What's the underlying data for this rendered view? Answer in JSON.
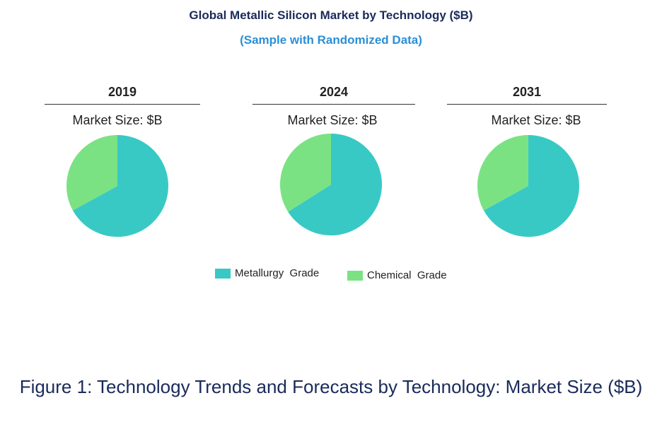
{
  "chart_data": {
    "type": "pie",
    "title": "Global Metallic Silicon Market by Technology ($B)",
    "subtitle": "(Sample with Randomized Data)",
    "legend": [
      "Metallurgy  Grade",
      "Chemical  Grade"
    ],
    "legend_placement": "bottom",
    "colors": {
      "Metallurgy  Grade": "#38c9c5",
      "Chemical  Grade": "#7be283"
    },
    "pies": [
      {
        "year": "2019",
        "label": "Market Size: $B",
        "values": [
          67,
          33
        ]
      },
      {
        "year": "2024",
        "label": "Market Size: $B",
        "values": [
          66,
          34
        ]
      },
      {
        "year": "2031",
        "label": "Market Size: $B",
        "values": [
          67,
          33
        ]
      }
    ]
  },
  "caption": "Figure 1: Technology Trends and Forecasts by Technology: Market Size ($B)"
}
